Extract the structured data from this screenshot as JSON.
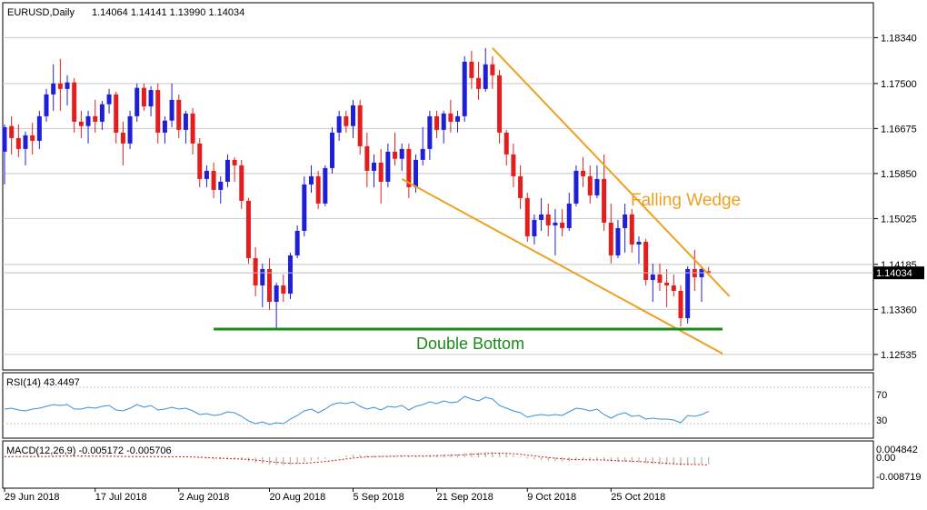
{
  "header": {
    "symbol": "EURUSD,Daily",
    "ohlc": "1.14064 1.14141 1.13990 1.14034"
  },
  "main_price_tag": "1.14034",
  "annotations": {
    "pattern": "Falling Wedge",
    "support": "Double Bottom"
  },
  "colors": {
    "bull": "#1f1fd6",
    "bear": "#e31e1e",
    "wedge": "#f0a020",
    "support": "#1a8a1a",
    "rsi": "#3a8fd6",
    "macd_signal": "#d01818",
    "macd_hist": "#b0b0b0",
    "grid": "#c8c8c8"
  },
  "rsi": {
    "label": "RSI(14) 43.4497",
    "levels": [
      "70",
      "30"
    ]
  },
  "macd": {
    "label": "MACD(12,26,9) -0.005172 -0.005706",
    "levels": [
      "0.004842",
      "0.00",
      "-0.008719"
    ]
  },
  "chart_data": {
    "type": "candlestick",
    "title": "EURUSD,Daily",
    "y_ticks": [
      "1.18340",
      "1.17500",
      "1.16675",
      "1.15850",
      "1.15025",
      "1.14185",
      "1.13360",
      "1.12535"
    ],
    "x_ticks": [
      "29 Jun 2018",
      "17 Jul 2018",
      "2 Aug 2018",
      "20 Aug 2018",
      "5 Sep 2018",
      "21 Sep 2018",
      "9 Oct 2018",
      "25 Oct 2018"
    ],
    "ylim": [
      1.1225,
      1.1898
    ],
    "candles": [
      {
        "o": 1.1625,
        "h": 1.1675,
        "l": 1.1565,
        "c": 1.167
      },
      {
        "o": 1.1672,
        "h": 1.169,
        "l": 1.162,
        "c": 1.165
      },
      {
        "o": 1.165,
        "h": 1.1675,
        "l": 1.1615,
        "c": 1.163
      },
      {
        "o": 1.163,
        "h": 1.1662,
        "l": 1.16,
        "c": 1.1655
      },
      {
        "o": 1.1655,
        "h": 1.1678,
        "l": 1.162,
        "c": 1.1645
      },
      {
        "o": 1.1645,
        "h": 1.17,
        "l": 1.163,
        "c": 1.169
      },
      {
        "o": 1.169,
        "h": 1.174,
        "l": 1.168,
        "c": 1.173
      },
      {
        "o": 1.173,
        "h": 1.1785,
        "l": 1.17,
        "c": 1.175
      },
      {
        "o": 1.175,
        "h": 1.1795,
        "l": 1.17,
        "c": 1.174
      },
      {
        "o": 1.174,
        "h": 1.1765,
        "l": 1.171,
        "c": 1.1752
      },
      {
        "o": 1.1752,
        "h": 1.176,
        "l": 1.166,
        "c": 1.168
      },
      {
        "o": 1.168,
        "h": 1.17,
        "l": 1.165,
        "c": 1.1672
      },
      {
        "o": 1.1672,
        "h": 1.17,
        "l": 1.164,
        "c": 1.169
      },
      {
        "o": 1.169,
        "h": 1.172,
        "l": 1.166,
        "c": 1.168
      },
      {
        "o": 1.168,
        "h": 1.1718,
        "l": 1.1665,
        "c": 1.1712
      },
      {
        "o": 1.1712,
        "h": 1.174,
        "l": 1.1695,
        "c": 1.173
      },
      {
        "o": 1.173,
        "h": 1.1735,
        "l": 1.164,
        "c": 1.166
      },
      {
        "o": 1.166,
        "h": 1.168,
        "l": 1.16,
        "c": 1.164
      },
      {
        "o": 1.164,
        "h": 1.17,
        "l": 1.163,
        "c": 1.169
      },
      {
        "o": 1.169,
        "h": 1.175,
        "l": 1.168,
        "c": 1.1742
      },
      {
        "o": 1.1742,
        "h": 1.175,
        "l": 1.17,
        "c": 1.1708
      },
      {
        "o": 1.1708,
        "h": 1.1745,
        "l": 1.169,
        "c": 1.1738
      },
      {
        "o": 1.1738,
        "h": 1.175,
        "l": 1.164,
        "c": 1.166
      },
      {
        "o": 1.166,
        "h": 1.169,
        "l": 1.164,
        "c": 1.1682
      },
      {
        "o": 1.1682,
        "h": 1.175,
        "l": 1.167,
        "c": 1.172
      },
      {
        "o": 1.172,
        "h": 1.173,
        "l": 1.165,
        "c": 1.1665
      },
      {
        "o": 1.1665,
        "h": 1.17,
        "l": 1.164,
        "c": 1.1695
      },
      {
        "o": 1.1695,
        "h": 1.1705,
        "l": 1.162,
        "c": 1.164
      },
      {
        "o": 1.164,
        "h": 1.165,
        "l": 1.156,
        "c": 1.1575
      },
      {
        "o": 1.1575,
        "h": 1.16,
        "l": 1.156,
        "c": 1.159
      },
      {
        "o": 1.159,
        "h": 1.1605,
        "l": 1.154,
        "c": 1.1555
      },
      {
        "o": 1.1555,
        "h": 1.158,
        "l": 1.153,
        "c": 1.157
      },
      {
        "o": 1.157,
        "h": 1.162,
        "l": 1.156,
        "c": 1.161
      },
      {
        "o": 1.161,
        "h": 1.1615,
        "l": 1.157,
        "c": 1.16
      },
      {
        "o": 1.16,
        "h": 1.161,
        "l": 1.152,
        "c": 1.1535
      },
      {
        "o": 1.1535,
        "h": 1.154,
        "l": 1.142,
        "c": 1.143
      },
      {
        "o": 1.143,
        "h": 1.145,
        "l": 1.136,
        "c": 1.138
      },
      {
        "o": 1.138,
        "h": 1.142,
        "l": 1.134,
        "c": 1.141
      },
      {
        "o": 1.141,
        "h": 1.143,
        "l": 1.1335,
        "c": 1.135
      },
      {
        "o": 1.135,
        "h": 1.1385,
        "l": 1.1302,
        "c": 1.138
      },
      {
        "o": 1.138,
        "h": 1.14,
        "l": 1.135,
        "c": 1.1365
      },
      {
        "o": 1.1365,
        "h": 1.144,
        "l": 1.1355,
        "c": 1.1435
      },
      {
        "o": 1.1435,
        "h": 1.149,
        "l": 1.143,
        "c": 1.148
      },
      {
        "o": 1.148,
        "h": 1.158,
        "l": 1.147,
        "c": 1.1565
      },
      {
        "o": 1.1565,
        "h": 1.16,
        "l": 1.155,
        "c": 1.158
      },
      {
        "o": 1.158,
        "h": 1.159,
        "l": 1.152,
        "c": 1.153
      },
      {
        "o": 1.153,
        "h": 1.16,
        "l": 1.1525,
        "c": 1.1595
      },
      {
        "o": 1.1595,
        "h": 1.167,
        "l": 1.1585,
        "c": 1.166
      },
      {
        "o": 1.166,
        "h": 1.17,
        "l": 1.1645,
        "c": 1.169
      },
      {
        "o": 1.169,
        "h": 1.17,
        "l": 1.166,
        "c": 1.1672
      },
      {
        "o": 1.1672,
        "h": 1.172,
        "l": 1.165,
        "c": 1.171
      },
      {
        "o": 1.171,
        "h": 1.172,
        "l": 1.162,
        "c": 1.1635
      },
      {
        "o": 1.1635,
        "h": 1.166,
        "l": 1.156,
        "c": 1.159
      },
      {
        "o": 1.159,
        "h": 1.162,
        "l": 1.156,
        "c": 1.1605
      },
      {
        "o": 1.1605,
        "h": 1.163,
        "l": 1.153,
        "c": 1.157
      },
      {
        "o": 1.157,
        "h": 1.164,
        "l": 1.156,
        "c": 1.1625
      },
      {
        "o": 1.1625,
        "h": 1.166,
        "l": 1.16,
        "c": 1.1612
      },
      {
        "o": 1.1612,
        "h": 1.164,
        "l": 1.159,
        "c": 1.163
      },
      {
        "o": 1.163,
        "h": 1.164,
        "l": 1.154,
        "c": 1.156
      },
      {
        "o": 1.156,
        "h": 1.162,
        "l": 1.155,
        "c": 1.161
      },
      {
        "o": 1.161,
        "h": 1.167,
        "l": 1.16,
        "c": 1.163
      },
      {
        "o": 1.163,
        "h": 1.17,
        "l": 1.161,
        "c": 1.169
      },
      {
        "o": 1.169,
        "h": 1.17,
        "l": 1.165,
        "c": 1.1665
      },
      {
        "o": 1.1665,
        "h": 1.17,
        "l": 1.164,
        "c": 1.1695
      },
      {
        "o": 1.1695,
        "h": 1.172,
        "l": 1.166,
        "c": 1.168
      },
      {
        "o": 1.168,
        "h": 1.17,
        "l": 1.166,
        "c": 1.169
      },
      {
        "o": 1.169,
        "h": 1.18,
        "l": 1.168,
        "c": 1.179
      },
      {
        "o": 1.179,
        "h": 1.181,
        "l": 1.174,
        "c": 1.176
      },
      {
        "o": 1.176,
        "h": 1.179,
        "l": 1.172,
        "c": 1.174
      },
      {
        "o": 1.174,
        "h": 1.1815,
        "l": 1.1735,
        "c": 1.1785
      },
      {
        "o": 1.1785,
        "h": 1.18,
        "l": 1.174,
        "c": 1.1765
      },
      {
        "o": 1.1765,
        "h": 1.1775,
        "l": 1.164,
        "c": 1.166
      },
      {
        "o": 1.166,
        "h": 1.1665,
        "l": 1.16,
        "c": 1.162
      },
      {
        "o": 1.162,
        "h": 1.164,
        "l": 1.156,
        "c": 1.158
      },
      {
        "o": 1.158,
        "h": 1.16,
        "l": 1.152,
        "c": 1.154
      },
      {
        "o": 1.154,
        "h": 1.155,
        "l": 1.146,
        "c": 1.147
      },
      {
        "o": 1.147,
        "h": 1.151,
        "l": 1.1455,
        "c": 1.15
      },
      {
        "o": 1.15,
        "h": 1.154,
        "l": 1.148,
        "c": 1.151
      },
      {
        "o": 1.151,
        "h": 1.153,
        "l": 1.147,
        "c": 1.149
      },
      {
        "o": 1.149,
        "h": 1.152,
        "l": 1.1435,
        "c": 1.1495
      },
      {
        "o": 1.1495,
        "h": 1.152,
        "l": 1.147,
        "c": 1.1485
      },
      {
        "o": 1.1485,
        "h": 1.155,
        "l": 1.148,
        "c": 1.153
      },
      {
        "o": 1.153,
        "h": 1.16,
        "l": 1.1525,
        "c": 1.159
      },
      {
        "o": 1.159,
        "h": 1.1615,
        "l": 1.156,
        "c": 1.158
      },
      {
        "o": 1.158,
        "h": 1.16,
        "l": 1.153,
        "c": 1.1545
      },
      {
        "o": 1.1545,
        "h": 1.16,
        "l": 1.154,
        "c": 1.1575
      },
      {
        "o": 1.1575,
        "h": 1.162,
        "l": 1.148,
        "c": 1.1495
      },
      {
        "o": 1.1495,
        "h": 1.153,
        "l": 1.142,
        "c": 1.1435
      },
      {
        "o": 1.1435,
        "h": 1.15,
        "l": 1.143,
        "c": 1.1485
      },
      {
        "o": 1.1485,
        "h": 1.153,
        "l": 1.144,
        "c": 1.151
      },
      {
        "o": 1.151,
        "h": 1.152,
        "l": 1.144,
        "c": 1.1455
      },
      {
        "o": 1.1455,
        "h": 1.147,
        "l": 1.142,
        "c": 1.146
      },
      {
        "o": 1.146,
        "h": 1.1465,
        "l": 1.138,
        "c": 1.139
      },
      {
        "o": 1.139,
        "h": 1.142,
        "l": 1.135,
        "c": 1.14
      },
      {
        "o": 1.14,
        "h": 1.142,
        "l": 1.137,
        "c": 1.1385
      },
      {
        "o": 1.1385,
        "h": 1.141,
        "l": 1.134,
        "c": 1.138
      },
      {
        "o": 1.138,
        "h": 1.14,
        "l": 1.136,
        "c": 1.137
      },
      {
        "o": 1.137,
        "h": 1.138,
        "l": 1.1305,
        "c": 1.132
      },
      {
        "o": 1.132,
        "h": 1.1415,
        "l": 1.131,
        "c": 1.141
      },
      {
        "o": 1.141,
        "h": 1.1445,
        "l": 1.137,
        "c": 1.1395
      },
      {
        "o": 1.1395,
        "h": 1.1415,
        "l": 1.135,
        "c": 1.141
      },
      {
        "o": 1.1406,
        "h": 1.1414,
        "l": 1.1399,
        "c": 1.1403
      }
    ],
    "falling_wedge": {
      "upper": [
        [
          70,
          1.1815
        ],
        [
          104,
          1.136
        ]
      ],
      "lower": [
        [
          57,
          1.1575
        ],
        [
          103,
          1.1255
        ]
      ]
    },
    "double_bottom_level": 1.13,
    "rsi": [
      46,
      47,
      45,
      44,
      46,
      47,
      49,
      51,
      50,
      51,
      46,
      46,
      48,
      47,
      49,
      50,
      45,
      44,
      47,
      51,
      48,
      50,
      45,
      46,
      48,
      46,
      47,
      44,
      40,
      41,
      39,
      40,
      43,
      42,
      38,
      33,
      30,
      32,
      29,
      31,
      30,
      35,
      39,
      44,
      46,
      42,
      46,
      51,
      53,
      52,
      54,
      49,
      46,
      48,
      45,
      49,
      48,
      50,
      45,
      49,
      51,
      54,
      52,
      55,
      53,
      54,
      60,
      57,
      55,
      59,
      57,
      50,
      47,
      44,
      42,
      37,
      39,
      40,
      39,
      40,
      39,
      43,
      47,
      46,
      44,
      46,
      40,
      36,
      40,
      42,
      38,
      39,
      35,
      36,
      35,
      35,
      34,
      31,
      39,
      38,
      40,
      43.45
    ],
    "macd_main": [
      0.0006,
      0.0007,
      0.0006,
      0.0005,
      0.0005,
      0.0006,
      0.0008,
      0.001,
      0.0011,
      0.0012,
      0.0008,
      0.0006,
      0.0005,
      0.0004,
      0.0005,
      0.0006,
      0.0003,
      0.0001,
      0.0002,
      0.0005,
      0.0005,
      0.0006,
      0.0003,
      0.0002,
      0.0003,
      0.0001,
      0.0002,
      -0.0002,
      -0.0008,
      -0.0011,
      -0.0015,
      -0.0017,
      -0.0017,
      -0.0017,
      -0.0021,
      -0.003,
      -0.0041,
      -0.0047,
      -0.0054,
      -0.0056,
      -0.0058,
      -0.0055,
      -0.0048,
      -0.0035,
      -0.0024,
      -0.0018,
      -0.0011,
      -0.0002,
      0.0007,
      0.0013,
      0.0019,
      0.0018,
      0.0014,
      0.0012,
      0.0008,
      0.0009,
      0.0009,
      0.0011,
      0.0007,
      0.0008,
      0.001,
      0.0015,
      0.0017,
      0.002,
      0.0021,
      0.0022,
      0.003,
      0.0033,
      0.0034,
      0.0037,
      0.0038,
      0.0031,
      0.0023,
      0.0014,
      0.0004,
      -0.0009,
      -0.0016,
      -0.0021,
      -0.0026,
      -0.0028,
      -0.0031,
      -0.0029,
      -0.0024,
      -0.0022,
      -0.0022,
      -0.0019,
      -0.0024,
      -0.0032,
      -0.0034,
      -0.0033,
      -0.0037,
      -0.0038,
      -0.0045,
      -0.0049,
      -0.0052,
      -0.0054,
      -0.0055,
      -0.006,
      -0.0056,
      -0.0054,
      -0.0051,
      -0.005172
    ],
    "macd_signal": [
      0.0005,
      0.0005,
      0.0006,
      0.0006,
      0.0006,
      0.0006,
      0.0006,
      0.0007,
      0.0008,
      0.0009,
      0.0009,
      0.0009,
      0.0009,
      0.0008,
      0.0008,
      0.0008,
      0.0007,
      0.0006,
      0.0005,
      0.0005,
      0.0005,
      0.0005,
      0.0005,
      0.0004,
      0.0004,
      0.0004,
      0.0003,
      0.0002,
      0.0,
      -0.0002,
      -0.0005,
      -0.0007,
      -0.0009,
      -0.0011,
      -0.0013,
      -0.0016,
      -0.0021,
      -0.0026,
      -0.0032,
      -0.0037,
      -0.0041,
      -0.0044,
      -0.0045,
      -0.0043,
      -0.004,
      -0.0036,
      -0.0031,
      -0.0025,
      -0.0019,
      -0.0012,
      -0.0006,
      -0.0001,
      0.0002,
      0.0005,
      0.0006,
      0.0007,
      0.0008,
      0.0009,
      0.0009,
      0.0009,
      0.0009,
      0.001,
      0.0012,
      0.0013,
      0.0015,
      0.0016,
      0.0019,
      0.0022,
      0.0024,
      0.0027,
      0.0029,
      0.003,
      0.0029,
      0.0026,
      0.0022,
      0.0016,
      0.001,
      0.0004,
      -0.0002,
      -0.0007,
      -0.0011,
      -0.0015,
      -0.0017,
      -0.0018,
      -0.0019,
      -0.0019,
      -0.002,
      -0.0023,
      -0.0025,
      -0.0027,
      -0.0029,
      -0.0031,
      -0.0034,
      -0.0037,
      -0.0041,
      -0.0044,
      -0.0047,
      -0.005,
      -0.0052,
      -0.0053,
      -0.0054,
      -0.005706
    ]
  }
}
